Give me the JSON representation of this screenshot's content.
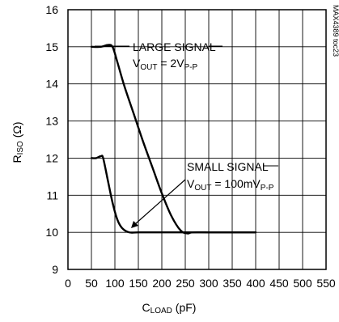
{
  "chart_data": {
    "type": "line",
    "xlabel": "C",
    "xlabel_sub": "LOAD",
    "xlabel_unit": " (pF)",
    "ylabel": "R",
    "ylabel_sub": "ISO",
    "ylabel_unit": " (Ω)",
    "xlim": [
      0,
      550
    ],
    "ylim": [
      9,
      16
    ],
    "x_ticks": [
      "0",
      "50",
      "100",
      "150",
      "200",
      "250",
      "300",
      "350",
      "400",
      "450",
      "500",
      "550"
    ],
    "y_ticks": [
      "9",
      "10",
      "11",
      "12",
      "13",
      "14",
      "15",
      "16"
    ],
    "grid": true,
    "series": [
      {
        "name": "LARGE SIGNAL",
        "x": [
          50,
          70,
          85,
          95,
          105,
          120,
          140,
          160,
          180,
          200,
          220,
          240,
          255,
          265,
          300,
          350,
          400
        ],
        "y": [
          15.0,
          15.0,
          15.05,
          15.0,
          14.6,
          13.95,
          13.2,
          12.45,
          11.75,
          11.05,
          10.45,
          10.05,
          9.97,
          10.0,
          10.0,
          10.0,
          10.0
        ]
      },
      {
        "name": "SMALL SIGNAL",
        "x": [
          50,
          60,
          70,
          75,
          85,
          95,
          105,
          115,
          130,
          150,
          200,
          250,
          300,
          350,
          400
        ],
        "y": [
          12.0,
          12.0,
          12.05,
          12.0,
          11.4,
          10.8,
          10.35,
          10.12,
          10.0,
          10.0,
          10.0,
          10.0,
          10.0,
          10.0,
          10.0
        ]
      }
    ],
    "annotations": {
      "large_title": "LARGE SIGNAL",
      "large_cond_a": "V",
      "large_cond_a_sub": "OUT",
      "large_cond_b": " = 2V",
      "large_cond_b_sub": "P-P",
      "small_title": "SMALL SIGNAL",
      "small_cond_a": "V",
      "small_cond_a_sub": "OUT",
      "small_cond_b": " = 100mV",
      "small_cond_b_sub": "P-P"
    },
    "watermark": "MAX4389 toc23"
  }
}
